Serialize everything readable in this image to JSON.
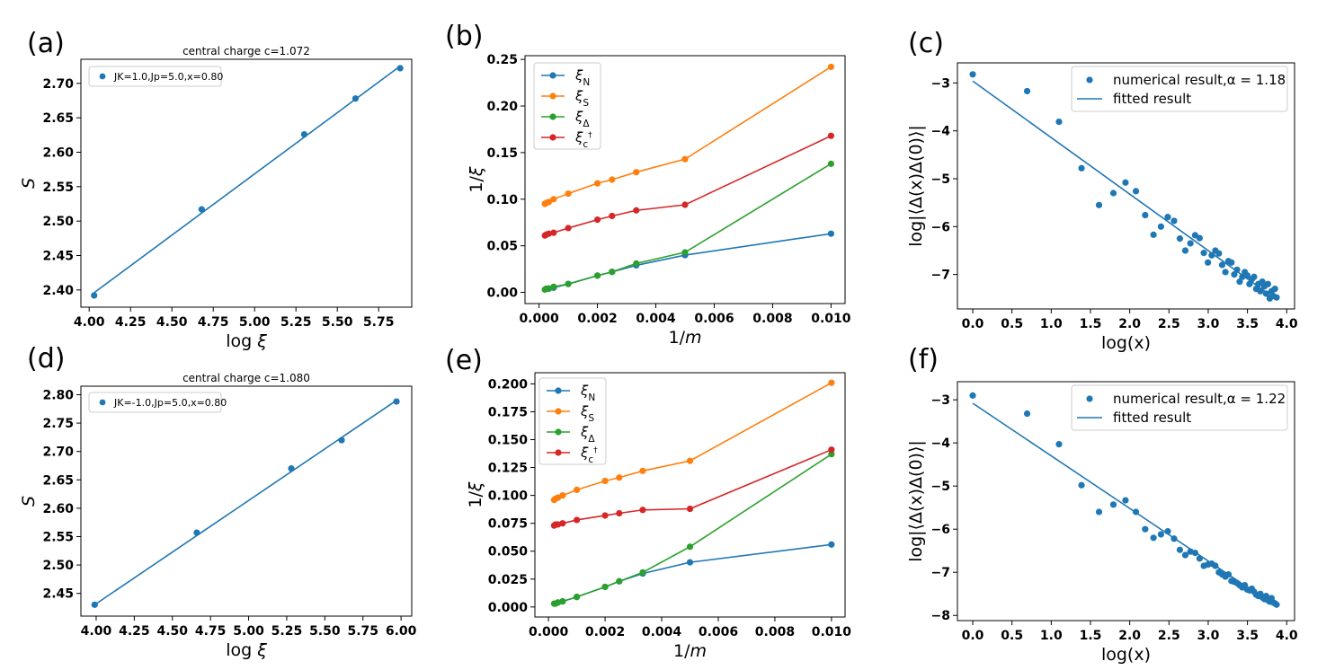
{
  "figure": {
    "colors": {
      "blue": "#1f77b4",
      "orange": "#ff7f0e",
      "green": "#2ca02c",
      "red": "#d62728",
      "frame": "#000000",
      "legend_edge": "#cccccc"
    }
  },
  "chart_data": [
    {
      "id": "a",
      "panel_label": "(a)",
      "type": "scatter",
      "title": "central charge c=1.072",
      "xlabel": "log ξ",
      "ylabel": "S",
      "xlim": [
        3.95,
        5.95
      ],
      "ylim": [
        2.375,
        2.735
      ],
      "xticks": [
        "4.00",
        "4.25",
        "4.50",
        "4.75",
        "5.00",
        "5.25",
        "5.50",
        "5.75"
      ],
      "xtick_values": [
        4.0,
        4.25,
        4.5,
        4.75,
        5.0,
        5.25,
        5.5,
        5.75
      ],
      "yticks": [
        "2.40",
        "2.45",
        "2.50",
        "2.55",
        "2.60",
        "2.65",
        "2.70"
      ],
      "ytick_values": [
        2.4,
        2.45,
        2.5,
        2.55,
        2.6,
        2.65,
        2.7
      ],
      "legend": {
        "location": "upper-left",
        "entries": [
          "JK=1.0,Jp=5.0,x=0.80"
        ]
      },
      "series": [
        {
          "name": "JK=1.0,Jp=5.0,x=0.80",
          "style": "markers",
          "color": "#1f77b4",
          "x": [
            4.03,
            4.68,
            5.3,
            5.61,
            5.88
          ],
          "y": [
            2.392,
            2.517,
            2.626,
            2.678,
            2.722
          ]
        },
        {
          "name": "fit",
          "style": "line",
          "color": "#1f77b4",
          "x": [
            4.03,
            5.88
          ],
          "y": [
            2.396,
            2.725
          ]
        }
      ]
    },
    {
      "id": "b",
      "panel_label": "(b)",
      "type": "line",
      "xlabel": "1/m",
      "ylabel": "1/ξ",
      "xlim": [
        -0.00048,
        0.01048
      ],
      "ylim": [
        -0.012,
        0.254
      ],
      "xticks": [
        "0.000",
        "0.002",
        "0.004",
        "0.006",
        "0.008",
        "0.010"
      ],
      "xtick_values": [
        0,
        0.002,
        0.004,
        0.006,
        0.008,
        0.01
      ],
      "yticks": [
        "0.00",
        "0.05",
        "0.10",
        "0.15",
        "0.20",
        "0.25"
      ],
      "ytick_values": [
        0,
        0.05,
        0.1,
        0.15,
        0.2,
        0.25
      ],
      "legend": {
        "location": "upper-left",
        "entries": [
          "ξ_N",
          "ξ_S",
          "ξ_Δ",
          "ξ_c†"
        ]
      },
      "series": [
        {
          "name": "ξ_N",
          "color": "#1f77b4",
          "x": [
            0.000333,
            0.0005,
            0.001,
            0.002,
            0.0025,
            0.00333,
            0.005,
            0.01
          ],
          "y": [
            0.004,
            0.005,
            0.009,
            0.018,
            0.022,
            0.029,
            0.04,
            0.063
          ]
        },
        {
          "name": "ξ_S",
          "color": "#ff7f0e",
          "x": [
            0.0002,
            0.00025,
            0.000333,
            0.0005,
            0.001,
            0.002,
            0.0025,
            0.00333,
            0.005,
            0.01
          ],
          "y": [
            0.095,
            0.096,
            0.097,
            0.1,
            0.106,
            0.117,
            0.121,
            0.129,
            0.143,
            0.242
          ]
        },
        {
          "name": "ξ_Δ",
          "color": "#2ca02c",
          "x": [
            0.0002,
            0.00025,
            0.000333,
            0.0005,
            0.001,
            0.002,
            0.0025,
            0.00333,
            0.005,
            0.01
          ],
          "y": [
            0.003,
            0.004,
            0.004,
            0.006,
            0.009,
            0.018,
            0.022,
            0.031,
            0.043,
            0.138
          ]
        },
        {
          "name": "ξ_c†",
          "color": "#d62728",
          "x": [
            0.0002,
            0.00025,
            0.000333,
            0.0005,
            0.001,
            0.002,
            0.0025,
            0.00333,
            0.005,
            0.01
          ],
          "y": [
            0.061,
            0.062,
            0.063,
            0.064,
            0.069,
            0.078,
            0.082,
            0.088,
            0.094,
            0.168
          ]
        }
      ]
    },
    {
      "id": "c",
      "panel_label": "(c)",
      "type": "scatter",
      "xlabel": "log(x)",
      "ylabel": "log|⟨Δ(x)Δ(0)⟩|",
      "xlim": [
        -0.195,
        4.1
      ],
      "ylim": [
        -7.72,
        -2.58
      ],
      "xticks": [
        "0.0",
        "0.5",
        "1.0",
        "1.5",
        "2.0",
        "2.5",
        "3.0",
        "3.5",
        "4.0"
      ],
      "xtick_values": [
        0,
        0.5,
        1.0,
        1.5,
        2.0,
        2.5,
        3.0,
        3.5,
        4.0
      ],
      "yticks": [
        "−3",
        "−4",
        "−5",
        "−6",
        "−7"
      ],
      "ytick_values": [
        -3,
        -4,
        -5,
        -6,
        -7
      ],
      "legend": {
        "location": "upper-right",
        "entries": [
          "numerical result,α = 1.18",
          "fitted result"
        ]
      },
      "series": [
        {
          "name": "numerical result,α = 1.18",
          "style": "markers",
          "color": "#1f77b4",
          "x": [
            0.0,
            0.693,
            1.099,
            1.386,
            1.609,
            1.792,
            1.946,
            2.079,
            2.197,
            2.303,
            2.398,
            2.485,
            2.565,
            2.639,
            2.708,
            2.773,
            2.833,
            2.89,
            2.944,
            2.996,
            3.045,
            3.091,
            3.136,
            3.178,
            3.219,
            3.258,
            3.296,
            3.332,
            3.367,
            3.401,
            3.434,
            3.466,
            3.497,
            3.526,
            3.555,
            3.584,
            3.611,
            3.638,
            3.664,
            3.689,
            3.714,
            3.738,
            3.761,
            3.784,
            3.807,
            3.829,
            3.85,
            3.871
          ],
          "y": [
            -2.82,
            -3.17,
            -3.81,
            -4.78,
            -5.55,
            -5.3,
            -5.08,
            -5.26,
            -5.76,
            -6.17,
            -6.0,
            -5.8,
            -5.88,
            -6.25,
            -6.5,
            -6.35,
            -6.18,
            -6.24,
            -6.55,
            -6.75,
            -6.6,
            -6.5,
            -6.56,
            -6.8,
            -6.95,
            -6.72,
            -6.75,
            -7.0,
            -6.9,
            -7.15,
            -7.05,
            -6.95,
            -7.02,
            -7.2,
            -7.1,
            -7.05,
            -7.3,
            -7.2,
            -7.35,
            -7.15,
            -7.25,
            -7.4,
            -7.2,
            -7.5,
            -7.35,
            -7.45,
            -7.3,
            -7.48
          ]
        },
        {
          "name": "fitted result",
          "style": "line",
          "color": "#1f77b4",
          "x": [
            0.0,
            3.871
          ],
          "y": [
            -2.96,
            -7.53
          ]
        }
      ]
    },
    {
      "id": "d",
      "panel_label": "(d)",
      "type": "scatter",
      "title": "central charge c=1.080",
      "xlabel": "log ξ",
      "ylabel": "S",
      "xlim": [
        3.9,
        6.07
      ],
      "ylim": [
        2.41,
        2.815
      ],
      "xticks": [
        "4.00",
        "4.25",
        "4.50",
        "4.75",
        "5.00",
        "5.25",
        "5.50",
        "5.75",
        "6.00"
      ],
      "xtick_values": [
        4.0,
        4.25,
        4.5,
        4.75,
        5.0,
        5.25,
        5.5,
        5.75,
        6.0
      ],
      "yticks": [
        "2.45",
        "2.50",
        "2.55",
        "2.60",
        "2.65",
        "2.70",
        "2.75",
        "2.80"
      ],
      "ytick_values": [
        2.45,
        2.5,
        2.55,
        2.6,
        2.65,
        2.7,
        2.75,
        2.8
      ],
      "legend": {
        "location": "upper-left",
        "entries": [
          "JK=-1.0,Jp=5.0,x=0.80"
        ]
      },
      "series": [
        {
          "name": "JK=-1.0,Jp=5.0,x=0.80",
          "style": "markers",
          "color": "#1f77b4",
          "x": [
            3.99,
            4.66,
            5.28,
            5.61,
            5.97
          ],
          "y": [
            2.43,
            2.557,
            2.67,
            2.72,
            2.788
          ]
        },
        {
          "name": "fit",
          "style": "line",
          "color": "#1f77b4",
          "x": [
            3.99,
            5.97
          ],
          "y": [
            2.43,
            2.79
          ]
        }
      ]
    },
    {
      "id": "e",
      "panel_label": "(e)",
      "type": "line",
      "xlabel": "1/m",
      "ylabel": "1/ξ",
      "xlim": [
        -0.00048,
        0.01048
      ],
      "ylim": [
        -0.009,
        0.21
      ],
      "xticks": [
        "0.000",
        "0.002",
        "0.004",
        "0.006",
        "0.008",
        "0.010"
      ],
      "xtick_values": [
        0,
        0.002,
        0.004,
        0.006,
        0.008,
        0.01
      ],
      "yticks": [
        "0.000",
        "0.025",
        "0.050",
        "0.075",
        "0.100",
        "0.125",
        "0.150",
        "0.175",
        "0.200"
      ],
      "ytick_values": [
        0,
        0.025,
        0.05,
        0.075,
        0.1,
        0.125,
        0.15,
        0.175,
        0.2
      ],
      "legend": {
        "location": "upper-left",
        "entries": [
          "ξ_N",
          "ξ_S",
          "ξ_Δ",
          "ξ_c†"
        ]
      },
      "series": [
        {
          "name": "ξ_N",
          "color": "#1f77b4",
          "x": [
            0.000333,
            0.0005,
            0.001,
            0.002,
            0.0025,
            0.00333,
            0.005,
            0.01
          ],
          "y": [
            0.004,
            0.005,
            0.009,
            0.018,
            0.023,
            0.03,
            0.04,
            0.056
          ]
        },
        {
          "name": "ξ_S",
          "color": "#ff7f0e",
          "x": [
            0.0002,
            0.00025,
            0.000333,
            0.0005,
            0.001,
            0.002,
            0.0025,
            0.00333,
            0.005,
            0.01
          ],
          "y": [
            0.096,
            0.097,
            0.098,
            0.1,
            0.105,
            0.113,
            0.116,
            0.122,
            0.131,
            0.201
          ]
        },
        {
          "name": "ξ_Δ",
          "color": "#2ca02c",
          "x": [
            0.0002,
            0.00025,
            0.000333,
            0.0005,
            0.001,
            0.002,
            0.0025,
            0.00333,
            0.005,
            0.01
          ],
          "y": [
            0.003,
            0.003,
            0.004,
            0.005,
            0.009,
            0.018,
            0.023,
            0.031,
            0.054,
            0.137
          ]
        },
        {
          "name": "ξ_c†",
          "color": "#d62728",
          "x": [
            0.0002,
            0.00025,
            0.000333,
            0.0005,
            0.001,
            0.002,
            0.0025,
            0.00333,
            0.005,
            0.01
          ],
          "y": [
            0.073,
            0.074,
            0.074,
            0.075,
            0.078,
            0.082,
            0.084,
            0.087,
            0.088,
            0.141
          ]
        }
      ]
    },
    {
      "id": "f",
      "panel_label": "(f)",
      "type": "scatter",
      "xlabel": "log(x)",
      "ylabel": "log|⟨Δ(x)Δ(0)⟩|",
      "xlim": [
        -0.195,
        4.1
      ],
      "ylim": [
        -8.12,
        -2.58
      ],
      "xticks": [
        "0.0",
        "0.5",
        "1.0",
        "1.5",
        "2.0",
        "2.5",
        "3.0",
        "3.5",
        "4.0"
      ],
      "xtick_values": [
        0,
        0.5,
        1.0,
        1.5,
        2.0,
        2.5,
        3.0,
        3.5,
        4.0
      ],
      "yticks": [
        "−3",
        "−4",
        "−5",
        "−6",
        "−7",
        "−8"
      ],
      "ytick_values": [
        -3,
        -4,
        -5,
        -6,
        -7,
        -8
      ],
      "legend": {
        "location": "upper-right",
        "entries": [
          "numerical result,α = 1.22",
          "fitted result"
        ]
      },
      "series": [
        {
          "name": "numerical result,α = 1.22",
          "style": "markers",
          "color": "#1f77b4",
          "x": [
            0.0,
            0.693,
            1.099,
            1.386,
            1.609,
            1.792,
            1.946,
            2.079,
            2.197,
            2.303,
            2.398,
            2.485,
            2.565,
            2.639,
            2.708,
            2.773,
            2.833,
            2.89,
            2.944,
            2.996,
            3.045,
            3.091,
            3.136,
            3.178,
            3.219,
            3.258,
            3.296,
            3.332,
            3.367,
            3.401,
            3.434,
            3.466,
            3.497,
            3.526,
            3.555,
            3.584,
            3.611,
            3.638,
            3.664,
            3.689,
            3.714,
            3.738,
            3.761,
            3.784,
            3.807,
            3.829,
            3.85,
            3.871
          ],
          "y": [
            -2.9,
            -3.32,
            -4.03,
            -4.98,
            -5.6,
            -5.43,
            -5.33,
            -5.6,
            -6.0,
            -6.2,
            -6.12,
            -6.05,
            -6.22,
            -6.48,
            -6.6,
            -6.52,
            -6.55,
            -6.68,
            -6.85,
            -6.82,
            -6.8,
            -6.85,
            -7.0,
            -7.05,
            -7.1,
            -7.05,
            -7.2,
            -7.22,
            -7.25,
            -7.3,
            -7.35,
            -7.3,
            -7.4,
            -7.42,
            -7.38,
            -7.45,
            -7.52,
            -7.55,
            -7.5,
            -7.58,
            -7.62,
            -7.55,
            -7.65,
            -7.68,
            -7.6,
            -7.7,
            -7.72,
            -7.75
          ]
        },
        {
          "name": "fitted result",
          "style": "line",
          "color": "#1f77b4",
          "x": [
            0.0,
            3.871
          ],
          "y": [
            -3.08,
            -7.8
          ]
        }
      ]
    }
  ]
}
